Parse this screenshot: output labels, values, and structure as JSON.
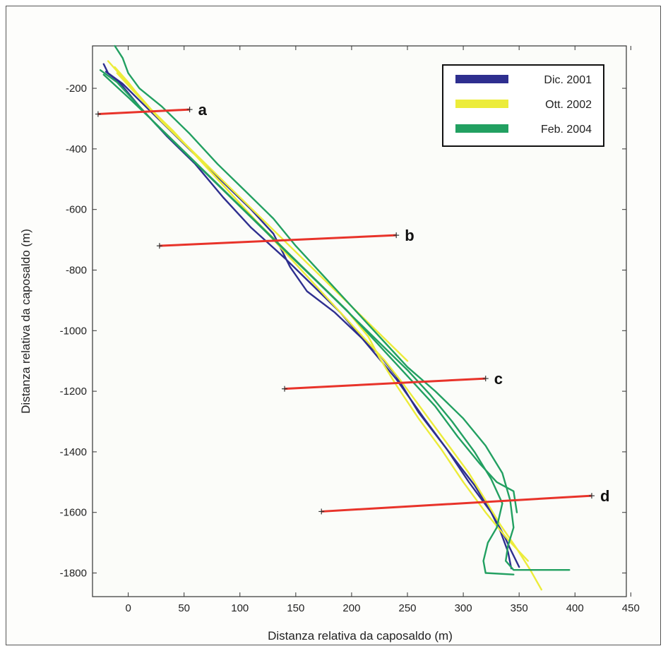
{
  "chart_data": {
    "type": "line",
    "xlabel": "Distanza relativa da caposaldo (m)",
    "ylabel": "Distanza relativa da caposaldo (m)",
    "xlim": [
      -32,
      446
    ],
    "ylim": [
      -1878,
      -60
    ],
    "xticks": [
      0,
      50,
      100,
      150,
      200,
      250,
      300,
      350,
      400,
      450
    ],
    "yticks": [
      -200,
      -400,
      -600,
      -800,
      -1000,
      -1200,
      -1400,
      -1600,
      -1800
    ],
    "grid": false,
    "legend_position": "top-right",
    "series": [
      {
        "name": "Dic. 2001",
        "color": "#2e2f8f",
        "segments": [
          [
            [
              -22,
              -120
            ],
            [
              -18,
              -150
            ],
            [
              -5,
              -185
            ],
            [
              10,
              -240
            ],
            [
              35,
              -330
            ],
            [
              60,
              -420
            ],
            [
              85,
              -510
            ],
            [
              110,
              -600
            ],
            [
              130,
              -680
            ],
            [
              145,
              -790
            ],
            [
              160,
              -870
            ],
            [
              185,
              -940
            ],
            [
              205,
              -1010
            ],
            [
              225,
              -1080
            ],
            [
              240,
              -1150
            ],
            [
              260,
              -1270
            ],
            [
              285,
              -1390
            ],
            [
              310,
              -1510
            ],
            [
              325,
              -1600
            ],
            [
              333,
              -1660
            ],
            [
              340,
              -1730
            ],
            [
              343,
              -1785
            ]
          ],
          [
            [
              -20,
              -145
            ],
            [
              -8,
              -180
            ],
            [
              10,
              -260
            ],
            [
              35,
              -360
            ],
            [
              60,
              -450
            ],
            [
              85,
              -560
            ],
            [
              110,
              -660
            ],
            [
              140,
              -760
            ],
            [
              165,
              -850
            ],
            [
              190,
              -940
            ],
            [
              215,
              -1050
            ],
            [
              240,
              -1160
            ],
            [
              265,
              -1290
            ],
            [
              285,
              -1390
            ],
            [
              305,
              -1500
            ],
            [
              325,
              -1600
            ],
            [
              337,
              -1680
            ],
            [
              342,
              -1720
            ],
            [
              350,
              -1780
            ]
          ]
        ]
      },
      {
        "name": "Ott. 2002",
        "color": "#ecec3a",
        "segments": [
          [
            [
              -18,
              -110
            ],
            [
              -6,
              -160
            ],
            [
              10,
              -225
            ],
            [
              30,
              -310
            ],
            [
              55,
              -400
            ],
            [
              80,
              -500
            ],
            [
              105,
              -600
            ],
            [
              130,
              -700
            ],
            [
              155,
              -800
            ],
            [
              175,
              -880
            ],
            [
              195,
              -960
            ],
            [
              215,
              -1040
            ],
            [
              230,
              -1100
            ],
            [
              245,
              -1170
            ],
            [
              265,
              -1270
            ],
            [
              285,
              -1370
            ],
            [
              305,
              -1470
            ],
            [
              320,
              -1560
            ],
            [
              333,
              -1640
            ],
            [
              348,
              -1720
            ],
            [
              360,
              -1790
            ],
            [
              370,
              -1855
            ]
          ],
          [
            [
              -12,
              -130
            ],
            [
              0,
              -180
            ],
            [
              15,
              -250
            ],
            [
              40,
              -340
            ],
            [
              65,
              -440
            ],
            [
              90,
              -540
            ],
            [
              115,
              -640
            ],
            [
              145,
              -750
            ],
            [
              170,
              -840
            ],
            [
              195,
              -930
            ],
            [
              215,
              -1020
            ],
            [
              225,
              -1090
            ],
            [
              240,
              -1180
            ],
            [
              260,
              -1290
            ],
            [
              280,
              -1390
            ],
            [
              300,
              -1500
            ],
            [
              320,
              -1600
            ],
            [
              340,
              -1690
            ],
            [
              358,
              -1760
            ]
          ],
          [
            [
              -10,
              -150
            ],
            [
              5,
              -210
            ],
            [
              25,
              -290
            ],
            [
              50,
              -380
            ],
            [
              75,
              -470
            ],
            [
              100,
              -560
            ],
            [
              125,
              -650
            ],
            [
              150,
              -740
            ],
            [
              175,
              -830
            ],
            [
              200,
              -920
            ],
            [
              225,
              -1010
            ],
            [
              250,
              -1100
            ]
          ]
        ]
      },
      {
        "name": "Feb. 2004",
        "color": "#22a061",
        "segments": [
          [
            [
              -12,
              -60
            ],
            [
              -5,
              -100
            ],
            [
              0,
              -150
            ],
            [
              10,
              -200
            ],
            [
              30,
              -260
            ],
            [
              55,
              -350
            ],
            [
              80,
              -450
            ],
            [
              105,
              -540
            ],
            [
              130,
              -630
            ],
            [
              150,
              -720
            ],
            [
              170,
              -800
            ],
            [
              190,
              -880
            ],
            [
              210,
              -960
            ],
            [
              230,
              -1040
            ],
            [
              250,
              -1120
            ],
            [
              275,
              -1200
            ],
            [
              300,
              -1290
            ],
            [
              320,
              -1380
            ],
            [
              335,
              -1470
            ],
            [
              342,
              -1560
            ],
            [
              345,
              -1650
            ],
            [
              340,
              -1710
            ],
            [
              338,
              -1760
            ],
            [
              345,
              -1790
            ],
            [
              395,
              -1790
            ]
          ],
          [
            [
              -25,
              -140
            ],
            [
              -10,
              -180
            ],
            [
              5,
              -240
            ],
            [
              25,
              -320
            ],
            [
              50,
              -410
            ],
            [
              75,
              -500
            ],
            [
              100,
              -590
            ],
            [
              125,
              -680
            ],
            [
              150,
              -770
            ],
            [
              175,
              -860
            ],
            [
              200,
              -950
            ],
            [
              225,
              -1040
            ],
            [
              250,
              -1130
            ],
            [
              270,
              -1210
            ],
            [
              290,
              -1300
            ],
            [
              310,
              -1400
            ],
            [
              325,
              -1490
            ],
            [
              335,
              -1570
            ],
            [
              330,
              -1650
            ],
            [
              322,
              -1700
            ],
            [
              318,
              -1760
            ],
            [
              320,
              -1800
            ],
            [
              345,
              -1805
            ]
          ],
          [
            [
              -22,
              -155
            ],
            [
              0,
              -230
            ],
            [
              20,
              -300
            ],
            [
              45,
              -390
            ],
            [
              70,
              -480
            ],
            [
              95,
              -570
            ],
            [
              120,
              -660
            ],
            [
              145,
              -750
            ],
            [
              170,
              -840
            ],
            [
              195,
              -930
            ],
            [
              215,
              -1010
            ],
            [
              235,
              -1090
            ],
            [
              255,
              -1170
            ],
            [
              275,
              -1250
            ],
            [
              295,
              -1350
            ],
            [
              315,
              -1440
            ],
            [
              330,
              -1500
            ],
            [
              345,
              -1530
            ],
            [
              348,
              -1600
            ]
          ]
        ]
      }
    ],
    "sections": [
      {
        "label": "a",
        "start": [
          -27,
          -285
        ],
        "end": [
          55,
          -270
        ]
      },
      {
        "label": "b",
        "start": [
          28,
          -720
        ],
        "end": [
          240,
          -685
        ]
      },
      {
        "label": "c",
        "start": [
          140,
          -1192
        ],
        "end": [
          320,
          -1158
        ]
      },
      {
        "label": "d",
        "start": [
          173,
          -1597
        ],
        "end": [
          415,
          -1545
        ]
      }
    ],
    "legend_entries": [
      "Dic. 2001",
      "Ott. 2002",
      "Feb. 2004"
    ],
    "section_color": "#e8332a"
  }
}
